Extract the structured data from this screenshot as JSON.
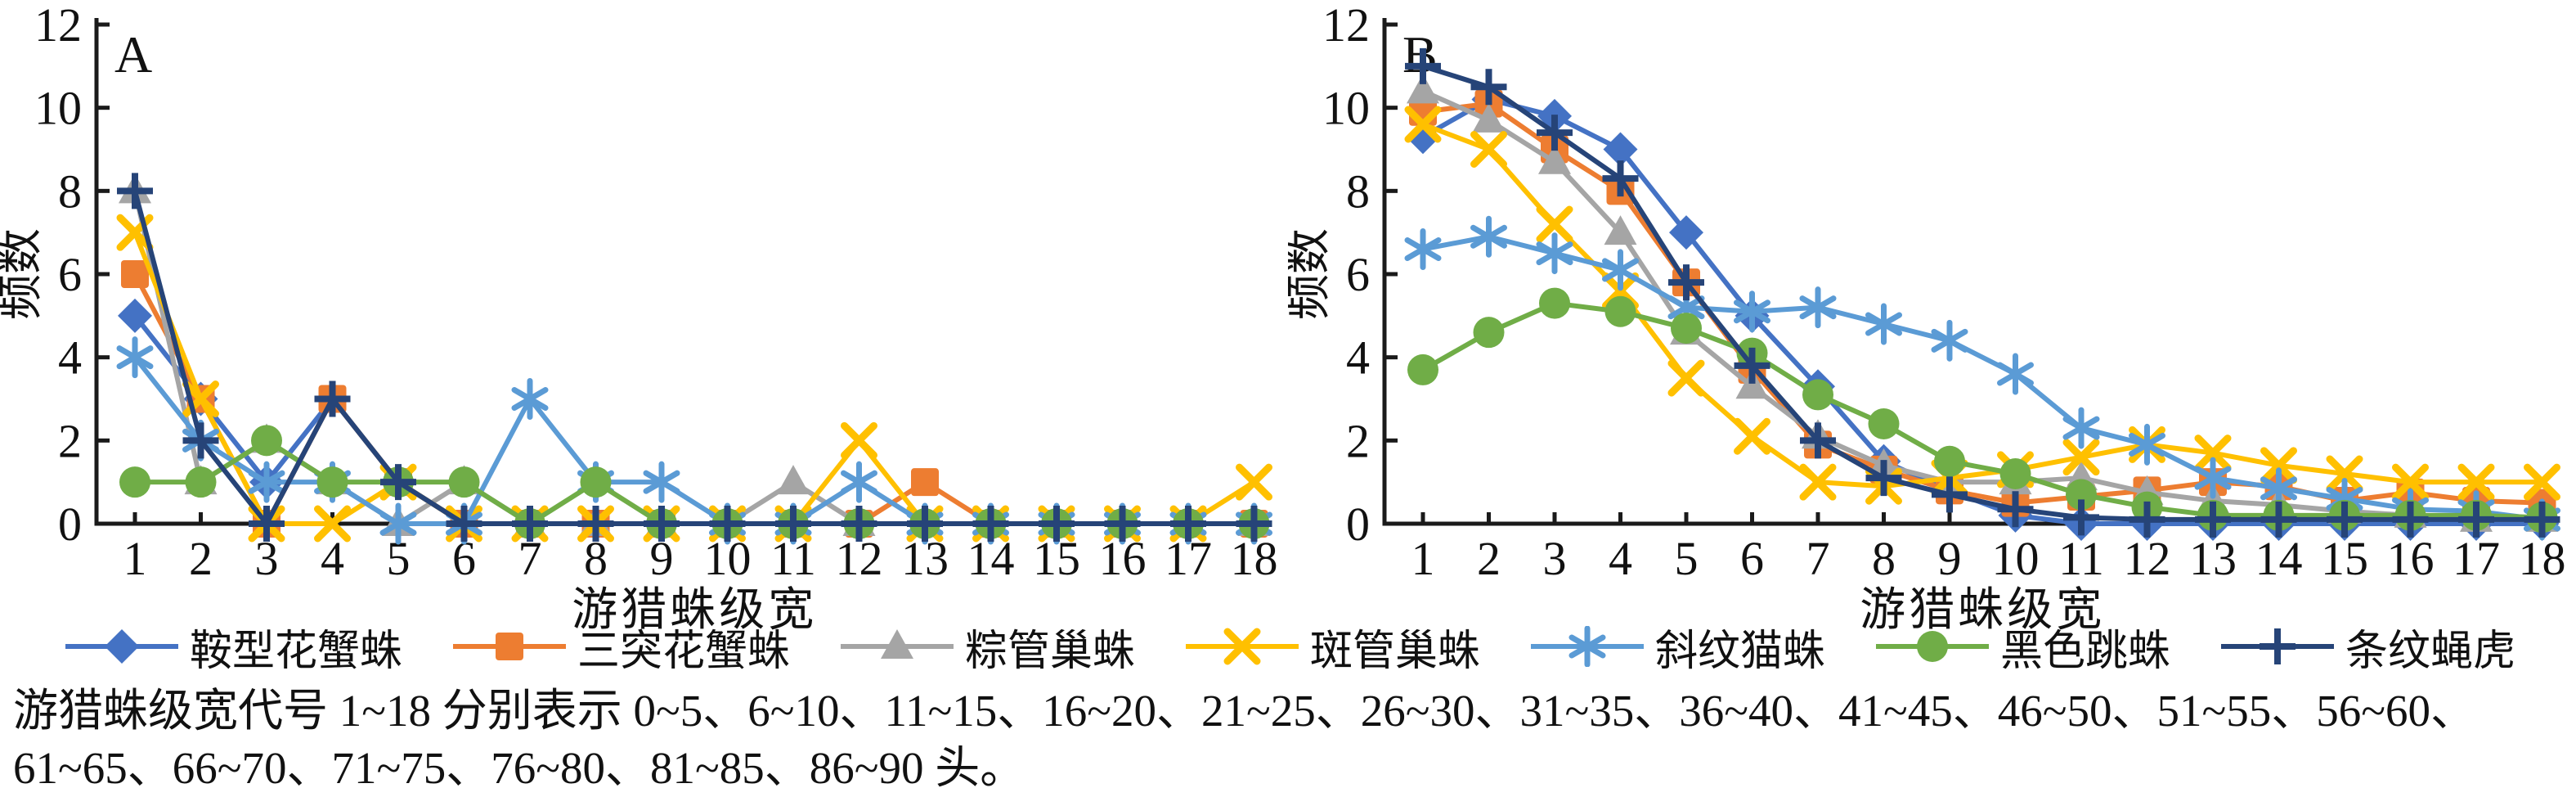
{
  "figure": {
    "ylabel": "频数",
    "xlabel": "游猎蛛级宽",
    "caption_line1": "游猎蛛级宽代号 1~18 分别表示 0~5、6~10、11~15、16~20、21~25、26~30、31~35、36~40、41~45、46~50、51~55、56~60、",
    "caption_line2": "61~65、66~70、71~75、76~80、81~85、86~90 头。"
  },
  "colors": {
    "axis": "#1a1a1a",
    "text": "#111111",
    "series_blue": "#4472C4",
    "series_orange": "#ED7D31",
    "series_gray": "#A5A5A5",
    "series_gold": "#FFC000",
    "series_lightblue": "#5B9BD5",
    "series_green": "#70AD47",
    "series_navy": "#264478"
  },
  "legend": {
    "entries": [
      {
        "label": "鞍型花蟹蛛",
        "color": "#4472C4",
        "marker": "diamond"
      },
      {
        "label": "三突花蟹蛛",
        "color": "#ED7D31",
        "marker": "square"
      },
      {
        "label": "粽管巢蛛",
        "color": "#A5A5A5",
        "marker": "triangle"
      },
      {
        "label": "斑管巢蛛",
        "color": "#FFC000",
        "marker": "xmark"
      },
      {
        "label": "斜纹猫蛛",
        "color": "#5B9BD5",
        "marker": "asterisk"
      },
      {
        "label": "黑色跳蛛",
        "color": "#70AD47",
        "marker": "circle"
      },
      {
        "label": "条纹蝇虎",
        "color": "#264478",
        "marker": "plus"
      }
    ]
  },
  "chart_data": [
    {
      "type": "line",
      "panel_label": "A",
      "xlabel": "游猎蛛级宽",
      "ylabel": "频数",
      "x": [
        1,
        2,
        3,
        4,
        5,
        6,
        7,
        8,
        9,
        10,
        11,
        12,
        13,
        14,
        15,
        16,
        17,
        18
      ],
      "ylim": [
        0,
        12
      ],
      "yticks": [
        0,
        2,
        4,
        6,
        8,
        10,
        12
      ],
      "grid": false,
      "legend_position": "bottom",
      "series": [
        {
          "name": "鞍型花蟹蛛",
          "color": "#4472C4",
          "marker": "diamond",
          "values": [
            5,
            3,
            1,
            3,
            1,
            0,
            0,
            0,
            0,
            0,
            0,
            0,
            0,
            0,
            0,
            0,
            0,
            0
          ]
        },
        {
          "name": "三突花蟹蛛",
          "color": "#ED7D31",
          "marker": "square",
          "values": [
            6,
            3,
            0,
            3,
            1,
            0,
            0,
            0,
            0,
            0,
            0,
            0,
            1,
            0,
            0,
            0,
            0,
            0
          ]
        },
        {
          "name": "粽管巢蛛",
          "color": "#A5A5A5",
          "marker": "triangle",
          "values": [
            8,
            1,
            2,
            1,
            0,
            1,
            0,
            0,
            0,
            0,
            1,
            0,
            0,
            0,
            0,
            0,
            0,
            0
          ]
        },
        {
          "name": "斑管巢蛛",
          "color": "#FFC000",
          "marker": "xmark",
          "values": [
            7,
            3,
            0,
            0,
            1,
            0,
            0,
            0,
            0,
            0,
            0,
            2,
            0,
            0,
            0,
            0,
            0,
            1
          ]
        },
        {
          "name": "斜纹猫蛛",
          "color": "#5B9BD5",
          "marker": "asterisk",
          "values": [
            4,
            2,
            1,
            1,
            0,
            0,
            3,
            1,
            1,
            0,
            0,
            1,
            0,
            0,
            0,
            0,
            0,
            0
          ]
        },
        {
          "name": "黑色跳蛛",
          "color": "#70AD47",
          "marker": "circle",
          "values": [
            1,
            1,
            2,
            1,
            1,
            1,
            0,
            1,
            0,
            0,
            0,
            0,
            0,
            0,
            0,
            0,
            0,
            0
          ]
        },
        {
          "name": "条纹蝇虎",
          "color": "#264478",
          "marker": "plus",
          "values": [
            8,
            2,
            0,
            3,
            1,
            0,
            0,
            0,
            0,
            0,
            0,
            0,
            0,
            0,
            0,
            0,
            0,
            0
          ]
        }
      ]
    },
    {
      "type": "line",
      "panel_label": "B",
      "xlabel": "游猎蛛级宽",
      "ylabel": "频数",
      "x": [
        1,
        2,
        3,
        4,
        5,
        6,
        7,
        8,
        9,
        10,
        11,
        12,
        13,
        14,
        15,
        16,
        17,
        18
      ],
      "ylim": [
        0,
        12
      ],
      "yticks": [
        0,
        2,
        4,
        6,
        8,
        10,
        12
      ],
      "grid": false,
      "legend_position": "bottom",
      "series": [
        {
          "name": "鞍型花蟹蛛",
          "color": "#4472C4",
          "marker": "diamond",
          "values": [
            9.3,
            10.2,
            9.8,
            9.0,
            7.0,
            5.0,
            3.3,
            1.5,
            0.8,
            0.2,
            0,
            0,
            0,
            0,
            0,
            0,
            0,
            0
          ]
        },
        {
          "name": "三突花蟹蛛",
          "color": "#ED7D31",
          "marker": "square",
          "values": [
            9.9,
            10.1,
            9.0,
            8.0,
            5.8,
            3.7,
            1.9,
            1.3,
            0.8,
            0.5,
            0.65,
            0.8,
            1.0,
            0.9,
            0.55,
            0.75,
            0.55,
            0.5
          ]
        },
        {
          "name": "粽管巢蛛",
          "color": "#A5A5A5",
          "marker": "triangle",
          "values": [
            10.4,
            9.7,
            8.7,
            7.0,
            4.6,
            3.3,
            2.1,
            1.4,
            1.0,
            1.0,
            1.1,
            0.75,
            0.55,
            0.45,
            0.3,
            0.2,
            0.1,
            0.1
          ]
        },
        {
          "name": "斑管巢蛛",
          "color": "#FFC000",
          "marker": "xmark",
          "values": [
            9.6,
            9.0,
            7.2,
            5.6,
            3.5,
            2.1,
            1.0,
            0.9,
            1.1,
            1.3,
            1.6,
            1.9,
            1.7,
            1.4,
            1.2,
            1.0,
            1.0,
            1.0
          ]
        },
        {
          "name": "斜纹猫蛛",
          "color": "#5B9BD5",
          "marker": "asterisk",
          "values": [
            6.6,
            6.9,
            6.5,
            6.1,
            5.2,
            5.1,
            5.2,
            4.8,
            4.4,
            3.6,
            2.3,
            1.9,
            1.1,
            0.85,
            0.6,
            0.35,
            0.3,
            0.1
          ]
        },
        {
          "name": "黑色跳蛛",
          "color": "#70AD47",
          "marker": "circle",
          "values": [
            3.7,
            4.6,
            5.3,
            5.1,
            4.7,
            4.1,
            3.1,
            2.4,
            1.5,
            1.2,
            0.7,
            0.4,
            0.2,
            0.2,
            0.2,
            0.2,
            0.2,
            0.15
          ]
        },
        {
          "name": "条纹蝇虎",
          "color": "#264478",
          "marker": "plus",
          "values": [
            11.0,
            10.5,
            9.4,
            8.3,
            5.8,
            3.8,
            2.0,
            1.1,
            0.7,
            0.35,
            0.15,
            0.1,
            0.1,
            0.1,
            0.1,
            0.1,
            0.1,
            0.1
          ]
        }
      ]
    }
  ]
}
